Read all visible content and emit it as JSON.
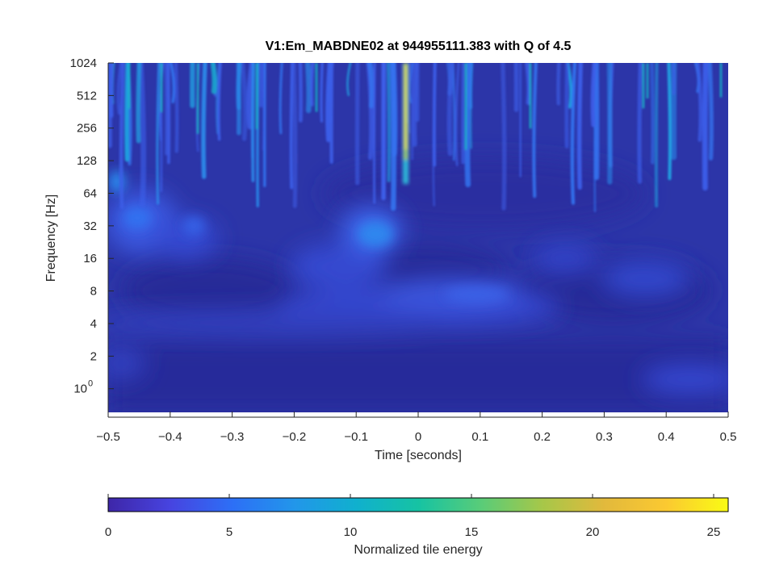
{
  "chart_data": [
    {
      "type": "heatmap",
      "title": "V1:Em_MABDNE02 at 944955111.383 with Q of 4.5",
      "xlabel": "Time [seconds]",
      "ylabel": "Frequency [Hz]",
      "xlim": [
        -0.5,
        0.5
      ],
      "ylim_log2": [
        -0.75,
        10
      ],
      "x_ticks": [
        {
          "value": -0.5,
          "label": "−0.5"
        },
        {
          "value": -0.4,
          "label": "−0.4"
        },
        {
          "value": -0.3,
          "label": "−0.3"
        },
        {
          "value": -0.2,
          "label": "−0.2"
        },
        {
          "value": -0.1,
          "label": "−0.1"
        },
        {
          "value": 0,
          "label": "0"
        },
        {
          "value": 0.1,
          "label": "0.1"
        },
        {
          "value": 0.2,
          "label": "0.2"
        },
        {
          "value": 0.3,
          "label": "0.3"
        },
        {
          "value": 0.4,
          "label": "0.4"
        },
        {
          "value": 0.5,
          "label": "0.5"
        }
      ],
      "y_ticks": [
        {
          "value": 1024,
          "label": "1024"
        },
        {
          "value": 512,
          "label": "512"
        },
        {
          "value": 256,
          "label": "256"
        },
        {
          "value": 128,
          "label": "128"
        },
        {
          "value": 64,
          "label": "64"
        },
        {
          "value": 32,
          "label": "32"
        },
        {
          "value": 16,
          "label": "16"
        },
        {
          "value": 8,
          "label": "8"
        },
        {
          "value": 4,
          "label": "4"
        },
        {
          "value": 2,
          "label": "2"
        }
      ],
      "y_tick_special": {
        "value": 1,
        "base": "10",
        "exponent": "0"
      },
      "features": [
        {
          "kind": "spike",
          "t": -0.022,
          "f_low": 90,
          "peak_energy": 25
        },
        {
          "kind": "blob",
          "t": -0.06,
          "f": 28,
          "energy": 6
        },
        {
          "kind": "blob",
          "t": -0.43,
          "f": 32,
          "energy": 5
        },
        {
          "kind": "blob",
          "t": 0.05,
          "f": 8,
          "energy": 4
        },
        {
          "kind": "band",
          "f": 4,
          "energy": 2.5
        },
        {
          "kind": "blob",
          "t": -0.44,
          "f": 90,
          "energy": 6
        }
      ]
    },
    {
      "type": "colorbar",
      "label": "Normalized tile energy",
      "range": [
        0,
        25.6
      ],
      "ticks": [
        {
          "value": 0,
          "label": "0"
        },
        {
          "value": 5,
          "label": "5"
        },
        {
          "value": 10,
          "label": "10"
        },
        {
          "value": 15,
          "label": "15"
        },
        {
          "value": 20,
          "label": "20"
        },
        {
          "value": 25,
          "label": "25"
        }
      ],
      "colormap": [
        "#3e26a8",
        "#4744e0",
        "#2d6ff6",
        "#2296ea",
        "#10b0ce",
        "#16c3a3",
        "#58cc79",
        "#a6c749",
        "#e2b93c",
        "#fbc931",
        "#f9fb14"
      ]
    }
  ]
}
